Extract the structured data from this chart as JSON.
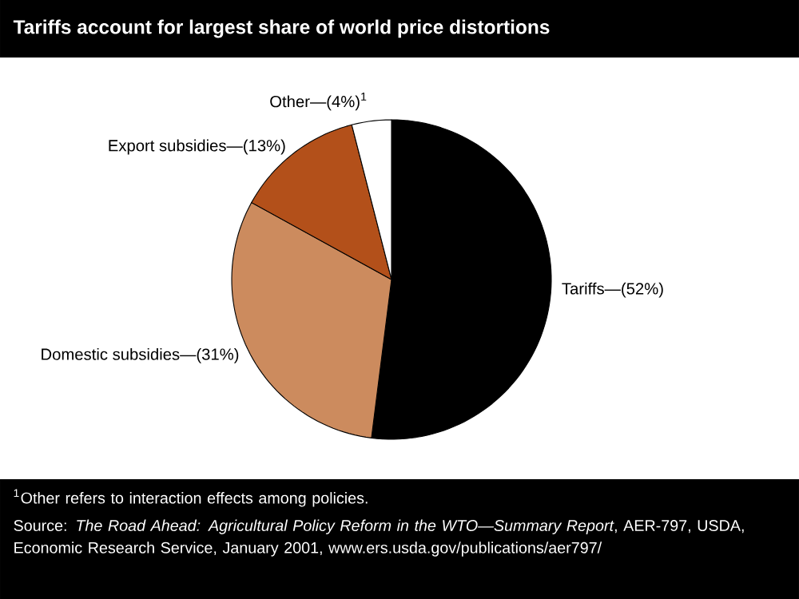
{
  "chart_data": {
    "type": "pie",
    "title": "Tariffs account for largest share of world price distortions",
    "categories": [
      "Tariffs—(52%)",
      "Domestic subsidies—(31%)",
      "Export subsidies—(13%)",
      "Other—(4%)$^{1}$"
    ],
    "values": [
      52,
      31,
      13,
      4
    ],
    "colors": [
      "#000000",
      "#cc8b5e",
      "#b3501a",
      "#ffffff"
    ],
    "legend": false,
    "annotations": [
      "$^{1}$Other refers to interaction effects among policies.",
      "Source: *The Road Ahead: Agricultural Policy Reform in the WTO—Summary Report*, AER-797, USDA, Economic Research Service, January 2001, www.ers.usda.gov/publications/aer797/"
    ]
  }
}
